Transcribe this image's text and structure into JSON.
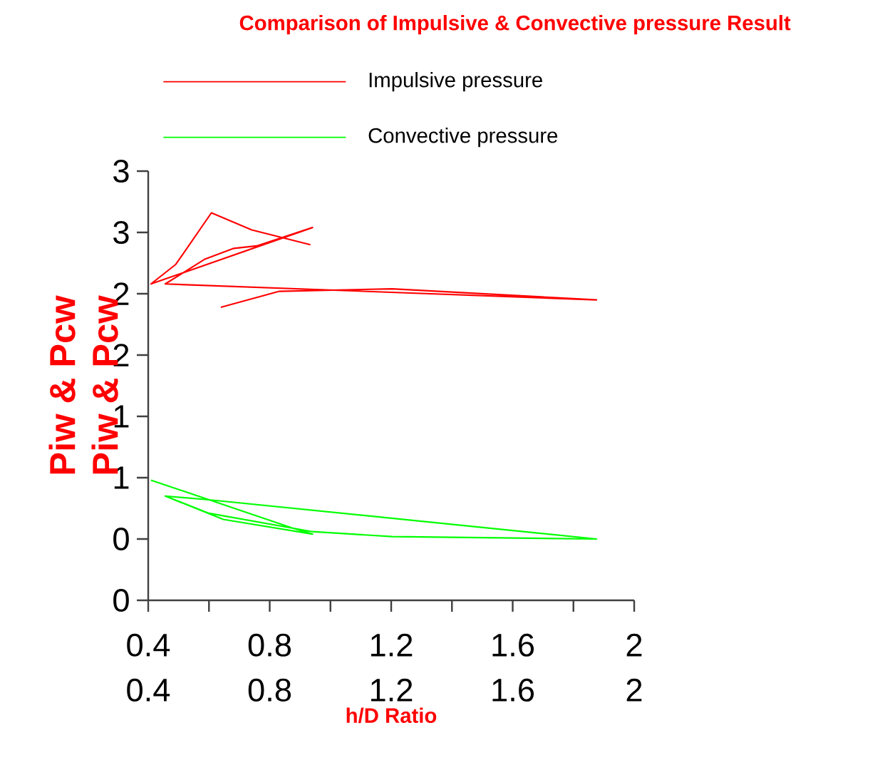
{
  "chart_data": {
    "type": "line",
    "title": "Comparison of Impulsive & Convective pressure Result",
    "xlabel": "h/D Ratio",
    "ylabel": "Piw & Pcw",
    "series": [
      {
        "name": "Impulsive pressure",
        "color": "#ff0000",
        "x": [
          0.639,
          0.832,
          1.203,
          1.876,
          0.456,
          0.585,
          0.682,
          0.757,
          0.941,
          0.409,
          0.491,
          0.608,
          0.741,
          0.934
        ],
        "values": [
          1.89,
          2.02,
          2.04,
          1.95,
          2.08,
          2.28,
          2.37,
          2.39,
          2.54,
          2.08,
          2.24,
          2.66,
          2.52,
          2.4
        ]
      },
      {
        "name": "Convective pressure",
        "color": "#00ff00",
        "x": [
          0.409,
          0.874,
          0.941,
          0.647,
          0.456,
          0.6,
          1.876,
          1.203,
          0.941,
          0.6,
          0.456
        ],
        "values": [
          0.48,
          0.09,
          0.04,
          0.16,
          0.35,
          0.32,
          0.0,
          0.02,
          0.06,
          0.21,
          0.35
        ]
      }
    ],
    "xlim": [
      0.4,
      2.0
    ],
    "ylim": [
      -0.5,
      3
    ],
    "xticks": [
      0.4,
      {
        "value": 0.6,
        "label": null
      },
      0.8,
      {
        "value": 1.0,
        "label": null
      },
      1.2,
      {
        "value": 1.4,
        "label": null
      },
      1.6,
      {
        "value": 1.8,
        "label": null
      },
      2
    ],
    "yticks": [
      {
        "value": -0.5,
        "label": "0"
      },
      0,
      {
        "value": 0.5,
        "label": "1"
      },
      1,
      {
        "value": 1.5,
        "label": "2"
      },
      2,
      {
        "value": 2.5,
        "label": "3"
      },
      3
    ],
    "annotations": [
      "0.4",
      "0.8",
      "1.2",
      "1.6",
      "2"
    ],
    "legend": "top",
    "grid": false
  }
}
